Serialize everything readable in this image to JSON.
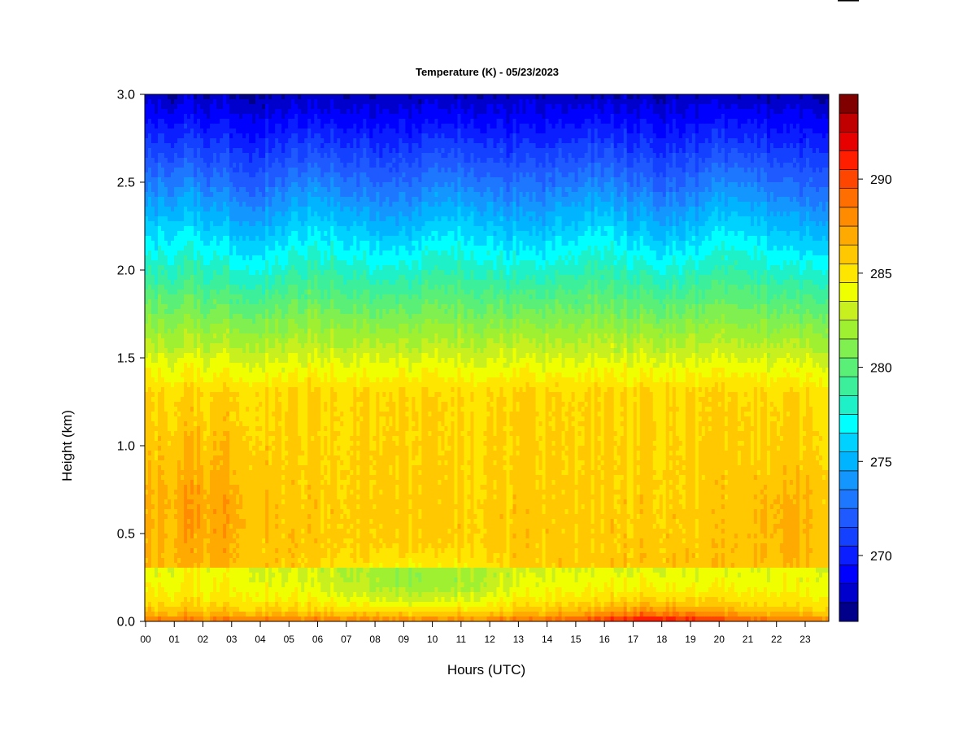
{
  "chart_data": {
    "type": "heatmap",
    "title": "Temperature (K) - 05/23/2023",
    "xlabel": "Hours (UTC)",
    "ylabel": "Height (km)",
    "x_ticks": [
      "00",
      "01",
      "02",
      "03",
      "04",
      "05",
      "06",
      "07",
      "08",
      "09",
      "10",
      "11",
      "12",
      "13",
      "14",
      "15",
      "16",
      "17",
      "18",
      "19",
      "20",
      "21",
      "22",
      "23"
    ],
    "xlim": [
      0,
      23.85
    ],
    "y_ticks": [
      "0.0",
      "0.5",
      "1.0",
      "1.5",
      "2.0",
      "2.5",
      "3.0"
    ],
    "ylim": [
      0,
      3
    ],
    "colorbar": {
      "min": 267,
      "max": 294,
      "step": 1,
      "ticks": [
        "270",
        "275",
        "280",
        "285",
        "290"
      ],
      "colors": [
        "#00008b",
        "#0000cd",
        "#0000ff",
        "#0a1eff",
        "#1440ff",
        "#1e5aff",
        "#1e78ff",
        "#1496ff",
        "#00b4ff",
        "#00d2ff",
        "#00ffff",
        "#1ef0c8",
        "#3cf09b",
        "#5af078",
        "#7ff050",
        "#a0f032",
        "#c8f01e",
        "#f0ff00",
        "#ffe600",
        "#ffc800",
        "#ffaa00",
        "#ff8c00",
        "#ff6e00",
        "#ff4600",
        "#ff1e00",
        "#e60000",
        "#c00000",
        "#800000"
      ]
    },
    "features": [
      {
        "description": "temperature decreases with height from ~285-287 K near 0.3-1.2 km to ~268-270 K at 3.0 km"
      },
      {
        "description": "warm surface layer (~290-292 K) below 0.15 km between 15 and 21 UTC"
      },
      {
        "description": "cooler layer (~283-284 K) around 0.1-0.4 km between 06 and 12 UTC"
      }
    ]
  }
}
